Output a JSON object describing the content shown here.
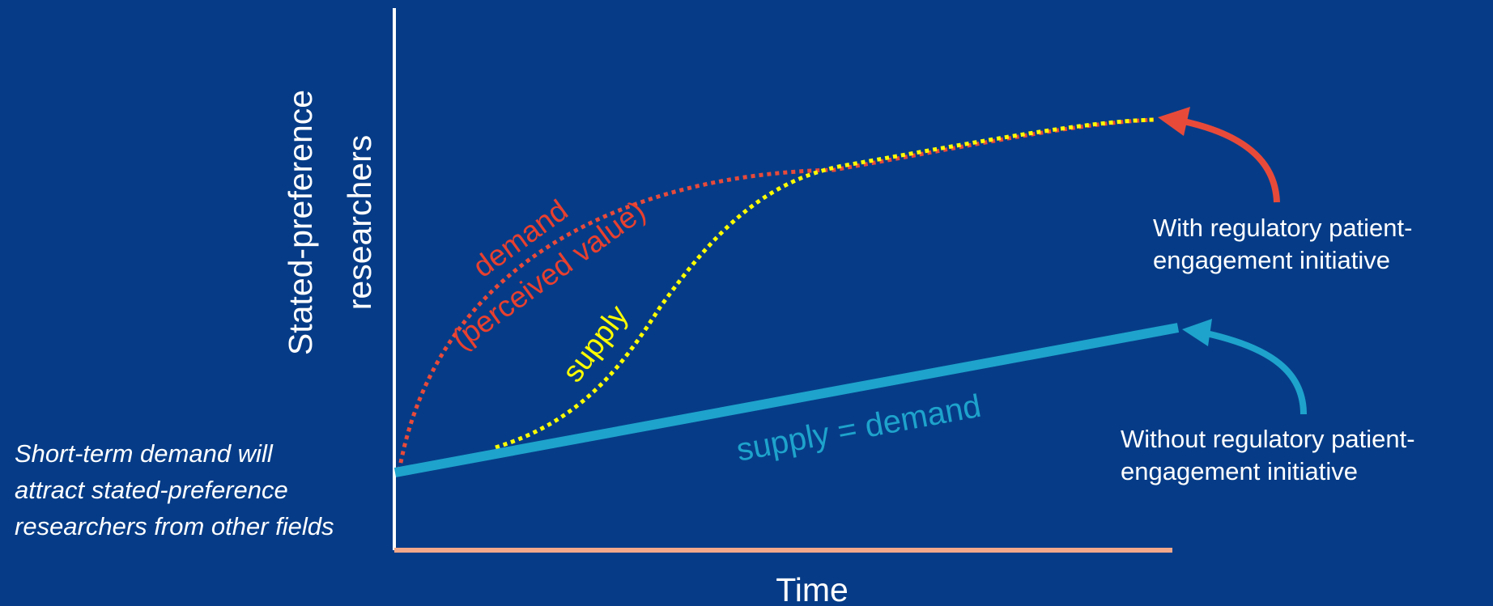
{
  "axes": {
    "y_label_line1": "Stated-preference",
    "y_label_line2": "researchers",
    "x_label": "Time"
  },
  "curves": {
    "demand_line1": "demand",
    "demand_line2": "(perceived value)",
    "supply": "supply",
    "baseline": "supply = demand"
  },
  "annotations": {
    "with_line1": "With regulatory patient-",
    "with_line2": "engagement initiative",
    "without_line1": "Without regulatory patient-",
    "without_line2": "engagement initiative",
    "side_note": "Short-term demand will attract stated-preference researchers from other fields"
  },
  "colors": {
    "background": "#063c87",
    "demand": "#e84a3a",
    "supply": "#ffff00",
    "baseline": "#1ea3cc",
    "x_axis": "#f2a88a",
    "y_axis": "#ffffff",
    "text": "#ffffff"
  }
}
